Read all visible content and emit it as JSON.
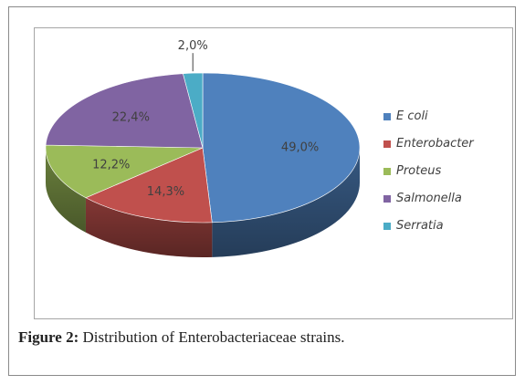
{
  "chart_data": {
    "type": "pie",
    "style": "3d",
    "categories": [
      "E coli",
      "Enterobacter",
      "Proteus",
      "Salmonella",
      "Serratia"
    ],
    "values": [
      49.0,
      14.3,
      12.2,
      22.4,
      2.0
    ],
    "data_labels": [
      "49,0%",
      "14,3%",
      "12,2%",
      "22,4%",
      "2,0%"
    ],
    "colors": [
      "#4f81bd",
      "#c0504d",
      "#9bbb59",
      "#8064a2",
      "#4bacc6"
    ],
    "legend_position": "right"
  },
  "caption": {
    "label": "Figure 2:",
    "text": "Distribution of Enterobacteriaceae strains."
  }
}
